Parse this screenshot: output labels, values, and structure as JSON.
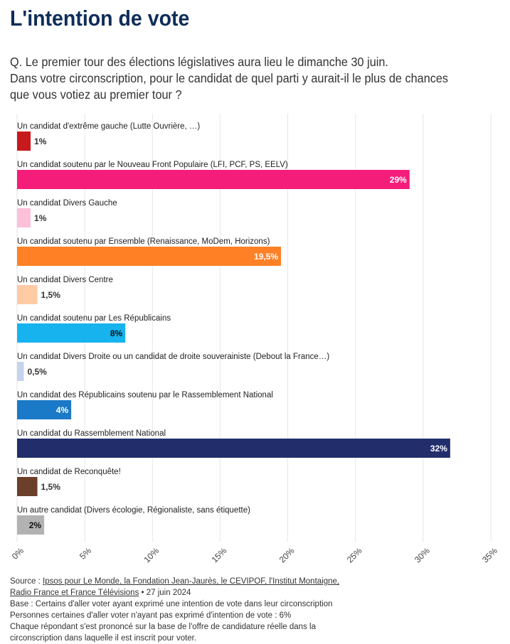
{
  "header": {
    "title": "L'intention de vote",
    "question_lines": [
      "Q. Le premier tour des élections législatives aura lieu le dimanche 30 juin.",
      "Dans votre circonscription, pour le candidat de quel parti y aurait-il le plus de chances",
      "que vous votiez au premier tour ?"
    ]
  },
  "chart_data": {
    "type": "bar",
    "orientation": "horizontal",
    "categories": [
      "Un candidat d'extrême gauche (Lutte Ouvrière, …)",
      "Un candidat soutenu par le Nouveau Front Populaire (LFI, PCF, PS, EELV)",
      "Un candidat Divers Gauche",
      "Un candidat soutenu par Ensemble (Renaissance, MoDem, Horizons)",
      "Un candidat Divers Centre",
      "Un candidat soutenu par Les Républicains",
      "Un candidat Divers Droite ou un candidat de droite souverainiste (Debout la France…)",
      "Un candidat des Républicains soutenu par le Rassemblement National",
      "Un candidat du Rassemblement National",
      "Un candidat de Reconquête!",
      "Un autre candidat (Divers écologie, Régionaliste, sans étiquette)"
    ],
    "values": [
      1,
      29,
      1,
      19.5,
      1.5,
      8,
      0.5,
      4,
      32,
      1.5,
      2
    ],
    "value_labels": [
      "1%",
      "29%",
      "1%",
      "19,5%",
      "1,5%",
      "8%",
      "0,5%",
      "4%",
      "32%",
      "1,5%",
      "2%"
    ],
    "colors": [
      "#c8191c",
      "#f51d7a",
      "#fcc1d8",
      "#ff8025",
      "#ffcba5",
      "#17b3ef",
      "#c7d3ee",
      "#1b7ac7",
      "#222e6c",
      "#6b3f2a",
      "#b2b2b2"
    ],
    "label_inside": [
      false,
      true,
      false,
      true,
      false,
      true,
      false,
      true,
      true,
      false,
      true
    ],
    "label_color": [
      "#333333",
      "#ffffff",
      "#333333",
      "#ffffff",
      "#333333",
      "#111111",
      "#333333",
      "#ffffff",
      "#ffffff",
      "#333333",
      "#111111"
    ],
    "xlim": [
      0,
      35
    ],
    "xticks": [
      0,
      5,
      10,
      15,
      20,
      25,
      30,
      35
    ],
    "xtick_labels": [
      "0%",
      "5%",
      "10%",
      "15%",
      "20%",
      "25%",
      "30%",
      "35%"
    ],
    "grid": true
  },
  "footer": {
    "source_prefix": "Source : ",
    "source_link_line1": "Ipsos pour Le Monde, la Fondation Jean-Jaurès, le CEVIPOF, l'Institut Montaigne,",
    "source_link_line2": "Radio France et France Télévisions",
    "source_date": " • 27 juin 2024",
    "notes": [
      "Base : Certains d'aller voter ayant exprimé une intention de vote dans leur circonscription",
      "Personnes certaines d'aller voter n'ayant pas exprimé d'intention de vote : 6%",
      "Chaque répondant s'est prononcé sur la base de l'offre de candidature réelle dans la",
      "circonscription dans laquelle il est inscrit pour voter."
    ]
  }
}
